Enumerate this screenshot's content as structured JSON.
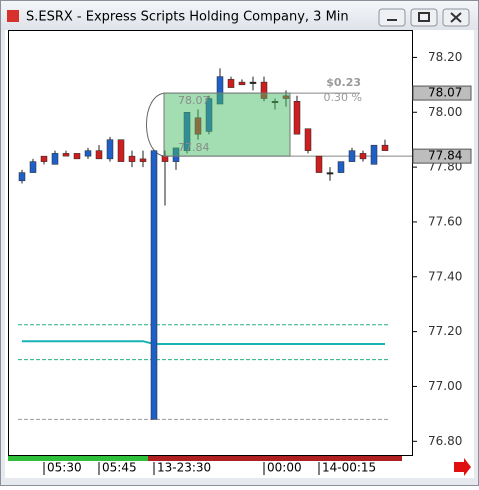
{
  "chart_data": {
    "type": "candlestick",
    "title": "S.ESRX - Express Scripts Holding Company, 3 Min",
    "categories": [
      null,
      null,
      "05:30",
      null,
      null,
      null,
      null,
      "05:45",
      null,
      null,
      null,
      null,
      "13-23:30",
      null,
      null,
      null,
      null,
      null,
      null,
      null,
      null,
      null,
      "00:00",
      null,
      null,
      null,
      null,
      "14-00:15",
      null,
      null,
      null,
      null,
      null,
      null
    ],
    "open": [
      77.75,
      77.78,
      77.84,
      77.81,
      77.85,
      77.85,
      77.84,
      77.86,
      77.83,
      77.9,
      77.84,
      77.83,
      76.88,
      77.84,
      77.82,
      77.86,
      77.98,
      77.93,
      78.03,
      78.12,
      78.11,
      78.11,
      78.11,
      78.04,
      78.06,
      78.04,
      77.94,
      77.84,
      77.78,
      77.78,
      77.82,
      77.85,
      77.81,
      77.88
    ],
    "high": [
      77.79,
      77.83,
      77.84,
      77.86,
      77.86,
      77.85,
      77.87,
      77.88,
      77.91,
      77.9,
      77.86,
      77.86,
      77.86,
      77.86,
      77.87,
      78.0,
      78.01,
      78.06,
      78.16,
      78.13,
      78.12,
      78.13,
      78.13,
      78.05,
      78.08,
      78.06,
      77.94,
      77.84,
      77.8,
      77.82,
      77.87,
      77.86,
      77.88,
      77.9
    ],
    "low": [
      77.74,
      77.78,
      77.81,
      77.81,
      77.84,
      77.83,
      77.83,
      77.83,
      77.82,
      77.82,
      77.8,
      77.8,
      76.88,
      77.66,
      77.79,
      77.85,
      77.9,
      77.92,
      78.03,
      78.09,
      78.1,
      78.08,
      78.04,
      78.01,
      78.02,
      77.92,
      77.85,
      77.78,
      77.75,
      77.78,
      77.82,
      77.82,
      77.81,
      77.86
    ],
    "close": [
      77.78,
      77.82,
      77.82,
      77.85,
      77.84,
      77.83,
      77.86,
      77.83,
      77.9,
      77.82,
      77.82,
      77.82,
      77.86,
      77.82,
      77.87,
      78.0,
      77.92,
      78.05,
      78.13,
      78.09,
      78.1,
      78.11,
      78.05,
      78.04,
      78.05,
      77.92,
      77.86,
      77.78,
      77.78,
      77.82,
      77.86,
      77.83,
      77.88,
      77.86
    ],
    "colors": {
      "up": "#1f5fc8",
      "down": "#cc1f1f",
      "flat": "#222222"
    },
    "ylim": [
      76.75,
      78.3
    ],
    "yticks": [
      {
        "value": 76.8,
        "label": "76.80"
      },
      {
        "value": 77.0,
        "label": "77.00"
      },
      {
        "value": 77.2,
        "label": "77.20"
      },
      {
        "value": 77.4,
        "label": "77.40"
      },
      {
        "value": 77.6,
        "label": "77.60"
      },
      {
        "value": 77.8,
        "label": "77.80"
      },
      {
        "value": 78.0,
        "label": "78.00"
      },
      {
        "value": 78.2,
        "label": "78.20"
      }
    ],
    "price_labels": [
      78.07,
      77.84
    ],
    "measure": {
      "start": 77.84,
      "end": 78.07,
      "change": {
        "value": 0.23,
        "label": "$0.23"
      },
      "percent": {
        "value": 0.3,
        "label": "0.30 %"
      }
    },
    "indicator": {
      "upper": 77.225,
      "lower": 77.098,
      "color": "#17b3b3",
      "middle": [
        77.165,
        77.165,
        77.165,
        77.165,
        77.165,
        77.165,
        77.165,
        77.165,
        77.165,
        77.165,
        77.165,
        77.165,
        77.155,
        77.155,
        77.155,
        77.155,
        77.155,
        77.155,
        77.155,
        77.155,
        77.155,
        77.155,
        77.155,
        77.155,
        77.155,
        77.155,
        77.155,
        77.155,
        77.155,
        77.155,
        77.155,
        77.155,
        77.155,
        77.155
      ]
    },
    "low_line": 76.88
  }
}
